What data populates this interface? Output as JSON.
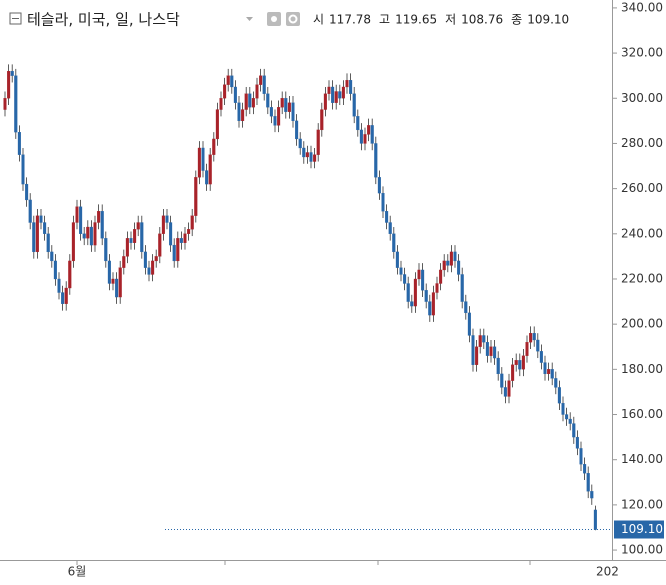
{
  "header": {
    "symbol": "테슬라, 미국, 일, 나스닥",
    "quote": [
      {
        "label": "시",
        "value": "117.78"
      },
      {
        "label": "고",
        "value": "119.65"
      },
      {
        "label": "저",
        "value": "108.76"
      },
      {
        "label": "종",
        "value": "109.10"
      }
    ]
  },
  "chart_data": {
    "type": "candlestick",
    "categories": [
      null,
      null,
      null,
      null,
      null,
      null,
      null,
      null,
      null,
      null,
      null,
      null,
      null,
      null,
      null,
      null,
      null,
      null,
      null,
      null,
      "6월",
      null,
      null,
      null,
      null,
      null,
      null,
      null,
      null,
      null,
      null,
      null,
      null,
      null,
      null,
      null,
      null,
      null,
      null,
      null,
      null,
      null,
      null,
      null,
      null,
      null,
      null,
      null,
      null,
      null,
      null,
      null,
      null,
      null,
      null,
      null,
      null,
      null,
      null,
      null,
      null,
      null,
      null,
      null,
      null,
      null,
      null,
      null,
      null,
      null,
      null,
      null,
      null,
      null,
      null,
      null,
      null,
      null,
      null,
      null,
      null,
      null,
      null,
      null,
      null,
      null,
      null,
      null,
      null,
      null,
      null,
      null,
      null,
      null,
      null,
      null,
      null,
      null,
      null,
      null,
      null,
      null,
      null,
      null,
      null,
      null,
      null,
      null,
      null,
      null,
      null,
      null,
      null,
      null,
      null,
      null,
      null,
      null,
      null,
      null,
      null,
      null,
      null,
      null,
      null,
      null,
      null,
      null,
      null,
      null,
      null,
      null,
      null,
      null,
      null,
      null,
      null,
      null,
      null,
      null,
      null,
      null,
      null,
      null,
      null,
      null,
      null,
      null,
      null,
      null,
      null,
      null,
      null,
      null,
      null,
      null,
      null,
      null,
      null,
      null,
      null,
      null,
      null,
      null,
      null
    ],
    "open": [
      295,
      300,
      312,
      310,
      285,
      275,
      262,
      255,
      245,
      232,
      248,
      245,
      240,
      232,
      228,
      220,
      214,
      209,
      216,
      228,
      245,
      252,
      240,
      238,
      243,
      235,
      245,
      250,
      238,
      228,
      218,
      220,
      212,
      225,
      230,
      238,
      236,
      242,
      245,
      232,
      225,
      222,
      228,
      230,
      240,
      248,
      245,
      235,
      228,
      238,
      236,
      240,
      242,
      248,
      265,
      278,
      268,
      262,
      275,
      282,
      295,
      300,
      306,
      310,
      305,
      298,
      290,
      295,
      302,
      296,
      300,
      306,
      310,
      302,
      296,
      292,
      288,
      296,
      300,
      294,
      298,
      290,
      282,
      278,
      274,
      276,
      272,
      275,
      286,
      295,
      302,
      305,
      298,
      303,
      300,
      305,
      308,
      302,
      292,
      286,
      280,
      284,
      288,
      280,
      265,
      258,
      250,
      245,
      240,
      232,
      225,
      222,
      218,
      210,
      208,
      220,
      224,
      215,
      210,
      204,
      214,
      218,
      224,
      228,
      226,
      232,
      228,
      222,
      210,
      205,
      195,
      182,
      190,
      195,
      192,
      186,
      190,
      185,
      178,
      172,
      168,
      175,
      182,
      184,
      180,
      186,
      192,
      196,
      193,
      188,
      183,
      178,
      180,
      176,
      172,
      165,
      160,
      158,
      156,
      150,
      145,
      138,
      134,
      126,
      117.78
    ],
    "high": [
      303,
      315,
      315,
      313,
      288,
      278,
      265,
      258,
      248,
      251,
      251,
      248,
      243,
      235,
      231,
      223,
      217,
      219,
      231,
      248,
      255,
      255,
      243,
      246,
      246,
      248,
      253,
      253,
      241,
      231,
      223,
      223,
      228,
      233,
      241,
      241,
      245,
      248,
      248,
      235,
      228,
      231,
      233,
      243,
      251,
      251,
      248,
      238,
      241,
      241,
      243,
      245,
      251,
      268,
      281,
      281,
      271,
      278,
      285,
      298,
      303,
      309,
      313,
      313,
      308,
      301,
      298,
      305,
      305,
      303,
      309,
      313,
      313,
      305,
      299,
      295,
      299,
      303,
      303,
      301,
      301,
      293,
      285,
      281,
      279,
      279,
      278,
      289,
      298,
      305,
      308,
      308,
      306,
      306,
      308,
      311,
      311,
      305,
      295,
      289,
      287,
      291,
      291,
      283,
      268,
      261,
      253,
      248,
      243,
      235,
      228,
      225,
      221,
      213,
      223,
      227,
      227,
      218,
      213,
      217,
      221,
      227,
      231,
      231,
      235,
      235,
      231,
      225,
      213,
      208,
      198,
      193,
      198,
      198,
      195,
      193,
      193,
      188,
      181,
      175,
      178,
      185,
      187,
      187,
      189,
      195,
      199,
      199,
      196,
      191,
      186,
      183,
      183,
      179,
      175,
      168,
      163,
      161,
      159,
      153,
      148,
      141,
      137,
      129,
      119.65
    ],
    "low": [
      292,
      297,
      307,
      282,
      272,
      259,
      252,
      242,
      229,
      229,
      242,
      237,
      229,
      225,
      217,
      211,
      206,
      206,
      213,
      225,
      242,
      237,
      235,
      235,
      232,
      232,
      242,
      235,
      225,
      215,
      215,
      209,
      209,
      222,
      227,
      233,
      233,
      239,
      229,
      222,
      219,
      219,
      225,
      227,
      237,
      242,
      232,
      225,
      225,
      233,
      233,
      237,
      239,
      245,
      262,
      265,
      259,
      259,
      272,
      279,
      292,
      297,
      303,
      302,
      295,
      287,
      287,
      292,
      293,
      293,
      297,
      303,
      299,
      293,
      289,
      285,
      285,
      293,
      291,
      291,
      287,
      279,
      275,
      271,
      271,
      269,
      269,
      272,
      283,
      292,
      299,
      295,
      295,
      297,
      297,
      302,
      299,
      289,
      283,
      277,
      277,
      281,
      277,
      262,
      255,
      247,
      242,
      237,
      229,
      222,
      219,
      215,
      207,
      205,
      205,
      217,
      212,
      207,
      201,
      201,
      211,
      215,
      221,
      223,
      223,
      225,
      219,
      207,
      202,
      192,
      179,
      179,
      187,
      189,
      183,
      183,
      182,
      175,
      169,
      165,
      165,
      172,
      179,
      177,
      177,
      183,
      189,
      190,
      185,
      180,
      175,
      175,
      173,
      169,
      162,
      157,
      155,
      153,
      147,
      142,
      135,
      131,
      123,
      120,
      108.76
    ],
    "close": [
      300,
      312,
      310,
      285,
      275,
      262,
      255,
      245,
      232,
      248,
      245,
      240,
      232,
      228,
      220,
      214,
      209,
      216,
      228,
      245,
      252,
      240,
      238,
      243,
      235,
      245,
      250,
      238,
      228,
      218,
      220,
      212,
      225,
      230,
      238,
      236,
      242,
      245,
      232,
      225,
      222,
      228,
      230,
      240,
      248,
      245,
      235,
      228,
      238,
      236,
      240,
      242,
      248,
      265,
      278,
      268,
      262,
      275,
      282,
      295,
      300,
      306,
      310,
      305,
      298,
      290,
      295,
      302,
      296,
      300,
      306,
      310,
      302,
      296,
      292,
      288,
      296,
      300,
      294,
      298,
      290,
      282,
      278,
      274,
      276,
      272,
      275,
      286,
      295,
      302,
      305,
      298,
      303,
      300,
      305,
      308,
      302,
      292,
      286,
      280,
      284,
      288,
      280,
      265,
      258,
      250,
      245,
      240,
      232,
      225,
      222,
      218,
      210,
      208,
      220,
      224,
      215,
      210,
      204,
      214,
      218,
      224,
      228,
      226,
      232,
      228,
      222,
      210,
      205,
      195,
      182,
      190,
      195,
      192,
      186,
      190,
      185,
      178,
      172,
      168,
      175,
      182,
      184,
      180,
      186,
      192,
      196,
      193,
      188,
      183,
      178,
      180,
      176,
      172,
      165,
      160,
      158,
      156,
      150,
      145,
      138,
      134,
      126,
      123,
      109.1
    ],
    "up_color": "#a8232a",
    "down_color": "#2867a8",
    "ylim": [
      95.6,
      343.5
    ],
    "yticks": [
      {
        "value": 100,
        "label": "100.00"
      },
      {
        "value": 120,
        "label": "120.00"
      },
      {
        "value": 140,
        "label": "140.00"
      },
      {
        "value": 160,
        "label": "160.00"
      },
      {
        "value": 180,
        "label": "180.00"
      },
      {
        "value": 200,
        "label": "200.00"
      },
      {
        "value": 220,
        "label": "220.00"
      },
      {
        "value": 240,
        "label": "240.00"
      },
      {
        "value": 260,
        "label": "260.00"
      },
      {
        "value": 280,
        "label": "280.00"
      },
      {
        "value": 300,
        "label": "300.00"
      },
      {
        "value": 320,
        "label": "320.00"
      },
      {
        "value": 340,
        "label": "340.00"
      }
    ],
    "last_price": {
      "value": 109.1,
      "label": "109.10"
    },
    "year_label": "202"
  }
}
